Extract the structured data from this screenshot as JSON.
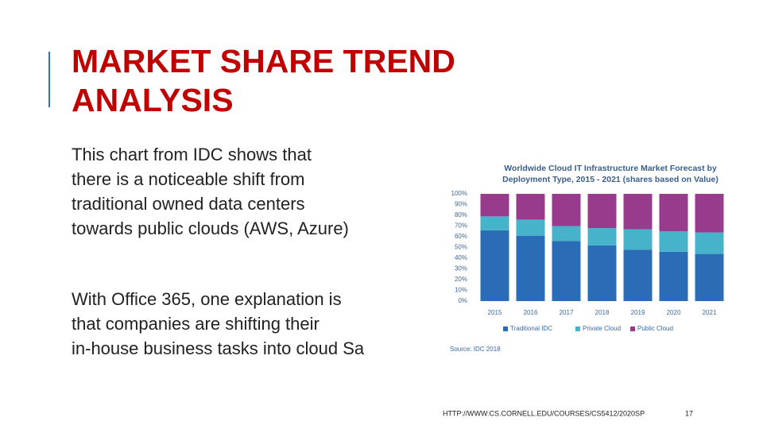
{
  "slide": {
    "title_lines": [
      "MARKET SHARE TREND",
      "ANALYSIS"
    ],
    "paragraphs": [
      [
        "This chart from IDC shows that",
        "there is a noticeable shift from",
        "traditional owned data centers",
        "towards public clouds (AWS, Azure)"
      ],
      [
        "With Office 365, one explanation is",
        "that companies are shifting their",
        "in-house business tasks into cloud Sa"
      ]
    ],
    "footer_url": "HTTP://WWW.CS.CORNELL.EDU/COURSES/CS5412/2020SP",
    "page_number": "17"
  },
  "chart_data": {
    "type": "bar",
    "stacked": true,
    "title_lines": [
      "Worldwide Cloud IT Infrastructure Market Forecast by",
      "Deployment Type, 2015 - 2021 (shares based on Value)"
    ],
    "source": "Source: IDC 2018",
    "categories": [
      "2015",
      "2016",
      "2017",
      "2018",
      "2019",
      "2020",
      "2021"
    ],
    "series": [
      {
        "name": "Traditional IDC",
        "color": "#2a6cb6",
        "values": [
          66,
          61,
          56,
          52,
          48,
          46,
          44
        ]
      },
      {
        "name": "Private Cloud",
        "color": "#46b3cb",
        "values": [
          13,
          15,
          14,
          16,
          19,
          19,
          20
        ]
      },
      {
        "name": "Public Cloud",
        "color": "#993b8c",
        "values": [
          21,
          24,
          30,
          32,
          33,
          35,
          36
        ]
      }
    ],
    "ylim": [
      0,
      100
    ],
    "yticks": [
      {
        "value": 0,
        "label": "0%"
      },
      {
        "value": 10,
        "label": "10%"
      },
      {
        "value": 20,
        "label": "20%"
      },
      {
        "value": 30,
        "label": "30%"
      },
      {
        "value": 40,
        "label": "40%"
      },
      {
        "value": 50,
        "label": "50%"
      },
      {
        "value": 60,
        "label": "60%"
      },
      {
        "value": 70,
        "label": "70%"
      },
      {
        "value": 80,
        "label": "80%"
      },
      {
        "value": 90,
        "label": "90%"
      },
      {
        "value": 100,
        "label": "100%"
      }
    ]
  }
}
